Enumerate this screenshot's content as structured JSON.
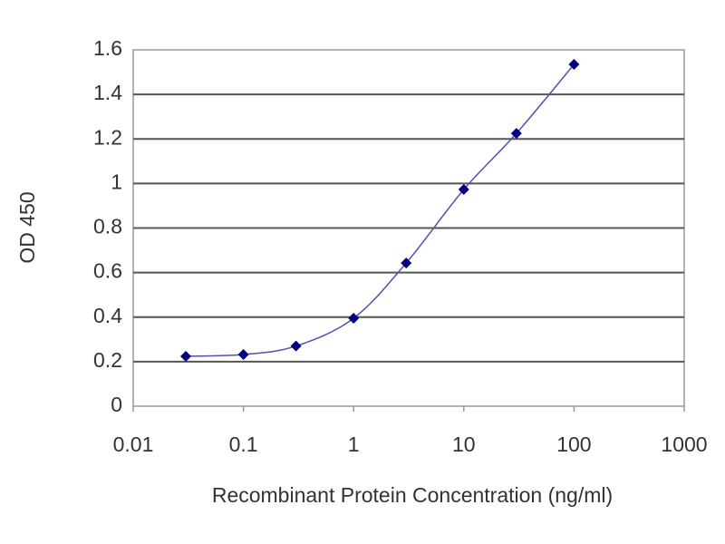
{
  "chart_data": {
    "type": "line",
    "xlabel": "Recombinant Protein Concentration (ng/ml)",
    "ylabel": "OD 450",
    "x": [
      0.03,
      0.1,
      0.3,
      1,
      3,
      10,
      30,
      100
    ],
    "series": [
      {
        "color": "#000080",
        "values": [
          0.224,
          0.232,
          0.27,
          0.395,
          0.643,
          0.973,
          1.225,
          1.535
        ]
      }
    ],
    "xlim": [
      0.01,
      1000
    ],
    "xticks": [
      0.01,
      0.1,
      1,
      10,
      100,
      1000
    ],
    "xlog": true,
    "ylim": [
      0,
      1.6
    ],
    "yticks": [
      0,
      0.2,
      0.4,
      0.6,
      0.8,
      1,
      1.2,
      1.4,
      1.6
    ],
    "grid": true
  }
}
